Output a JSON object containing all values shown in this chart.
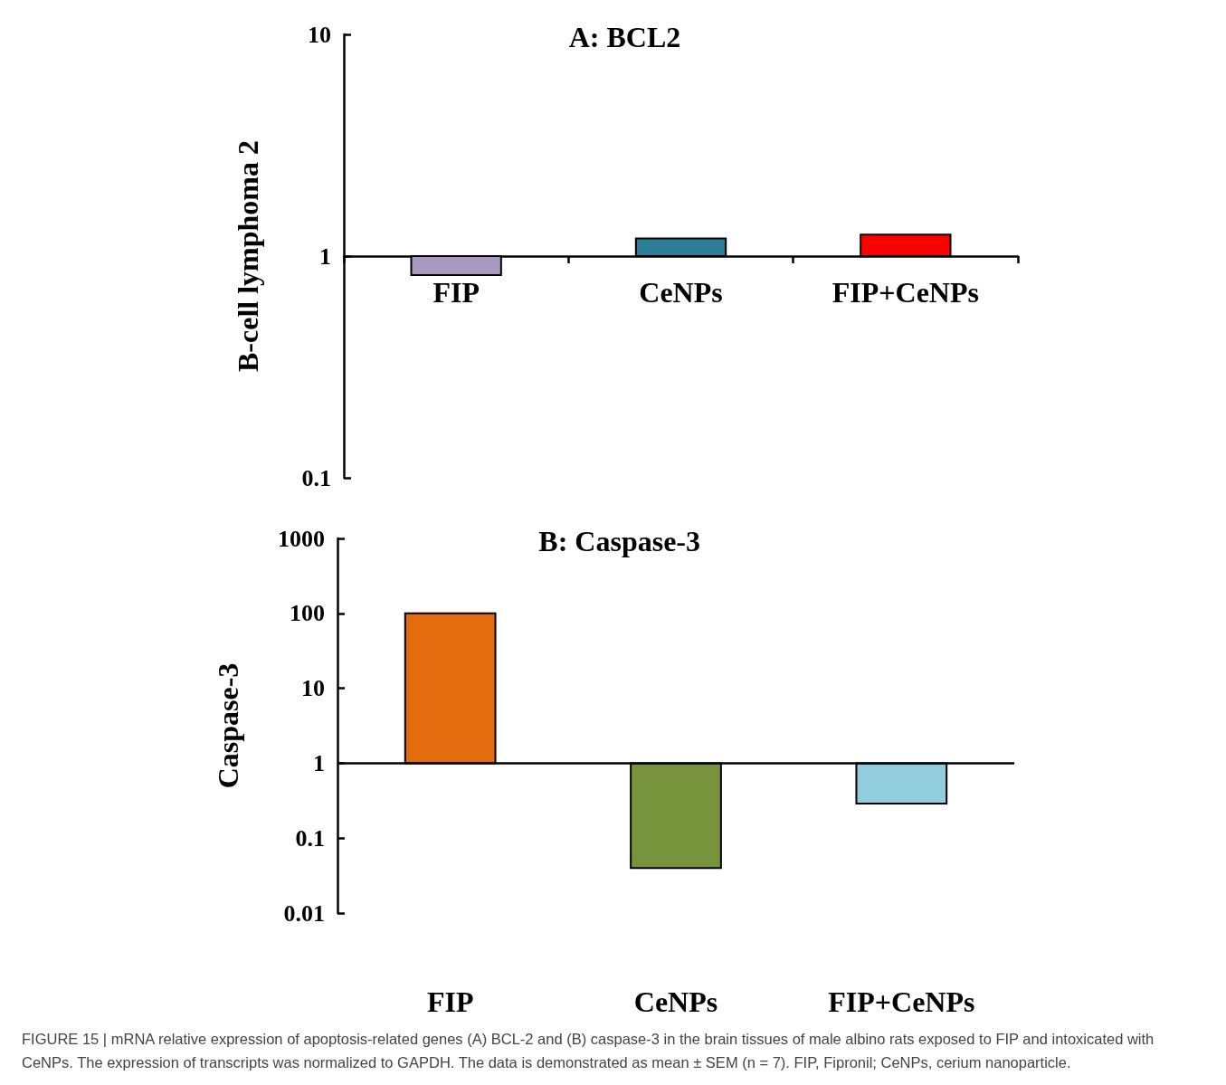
{
  "chart_data": [
    {
      "type": "bar",
      "title": "A: BCL2",
      "ylabel": "B-cell lymphoma 2",
      "categories": [
        "FIP",
        "CeNPs",
        "FIP+CeNPs"
      ],
      "log": "y",
      "ylim": [
        0.1,
        10
      ],
      "yticks": [
        0.1,
        1,
        10
      ],
      "grid": false,
      "series": [
        {
          "colors": [
            "#a898c0",
            "#2e7d96",
            "#ff0000"
          ],
          "values": [
            -0.18,
            0.2,
            0.25
          ],
          "base": [
            1,
            1,
            1
          ]
        }
      ]
    },
    {
      "type": "bar",
      "title": "B: Caspase-3",
      "ylabel": "Caspase-3",
      "categories": [
        "FIP",
        "CeNPs",
        "FIP+CeNPs"
      ],
      "log": "y",
      "ylim": [
        0.01,
        1000
      ],
      "yticks": [
        0.01,
        0.1,
        1,
        10,
        100,
        1000
      ],
      "grid": false,
      "series": [
        {
          "colors": [
            "#e36c0f",
            "#77933c",
            "#92cddd"
          ],
          "values": [
            99,
            -0.96,
            -0.71
          ],
          "base": [
            1,
            1,
            1
          ]
        }
      ],
      "ref_lines": [
        {
          "axis": "y",
          "value": 1,
          "color": "#000000"
        }
      ],
      "annotations": [
        "FIGURE 15 | mRNA relative expression of apoptosis-related genes (A) BCL-2 and (B) caspase-3 in the brain tissues of male albino rats exposed to FIP and intoxicated with CeNPs. The expression of transcripts was normalized to GAPDH. The data is demonstrated as mean ± SEM (n = 7). FIP, Fipronil; CeNPs, cerium nanoparticle."
      ]
    }
  ]
}
